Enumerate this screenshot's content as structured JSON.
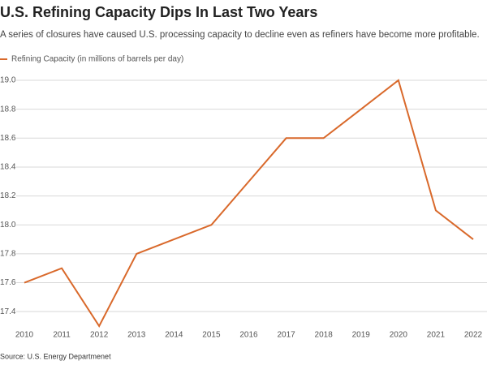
{
  "chart_data": {
    "type": "line",
    "title": "U.S. Refining Capacity Dips In Last Two Years",
    "subtitle": "A series of closures have caused U.S. processing capacity to decline even as refiners have become more profitable.",
    "source": "Source: U.S. Energy Departmenet",
    "x": [
      2010,
      2011,
      2012,
      2013,
      2014,
      2015,
      2016,
      2017,
      2018,
      2019,
      2020,
      2021,
      2022
    ],
    "series": [
      {
        "name": "Refining Capacity (in millions of barrels per day)",
        "color": "#d9692b",
        "values": [
          17.6,
          17.7,
          17.3,
          17.8,
          17.9,
          18.0,
          18.3,
          18.6,
          18.6,
          18.8,
          19.0,
          18.1,
          17.9
        ]
      }
    ],
    "xlim": [
      2010,
      2022
    ],
    "xticks": [
      2010,
      2011,
      2012,
      2013,
      2014,
      2015,
      2016,
      2017,
      2018,
      2019,
      2020,
      2021,
      2022
    ],
    "ylim": [
      17.3,
      19.0
    ],
    "yticks": [
      17.4,
      17.6,
      17.8,
      {
        "value": 18,
        "label": "18.0"
      },
      18.2,
      18.4,
      18.6,
      18.8,
      {
        "value": 19,
        "label": "19.0"
      }
    ],
    "grid": true
  }
}
